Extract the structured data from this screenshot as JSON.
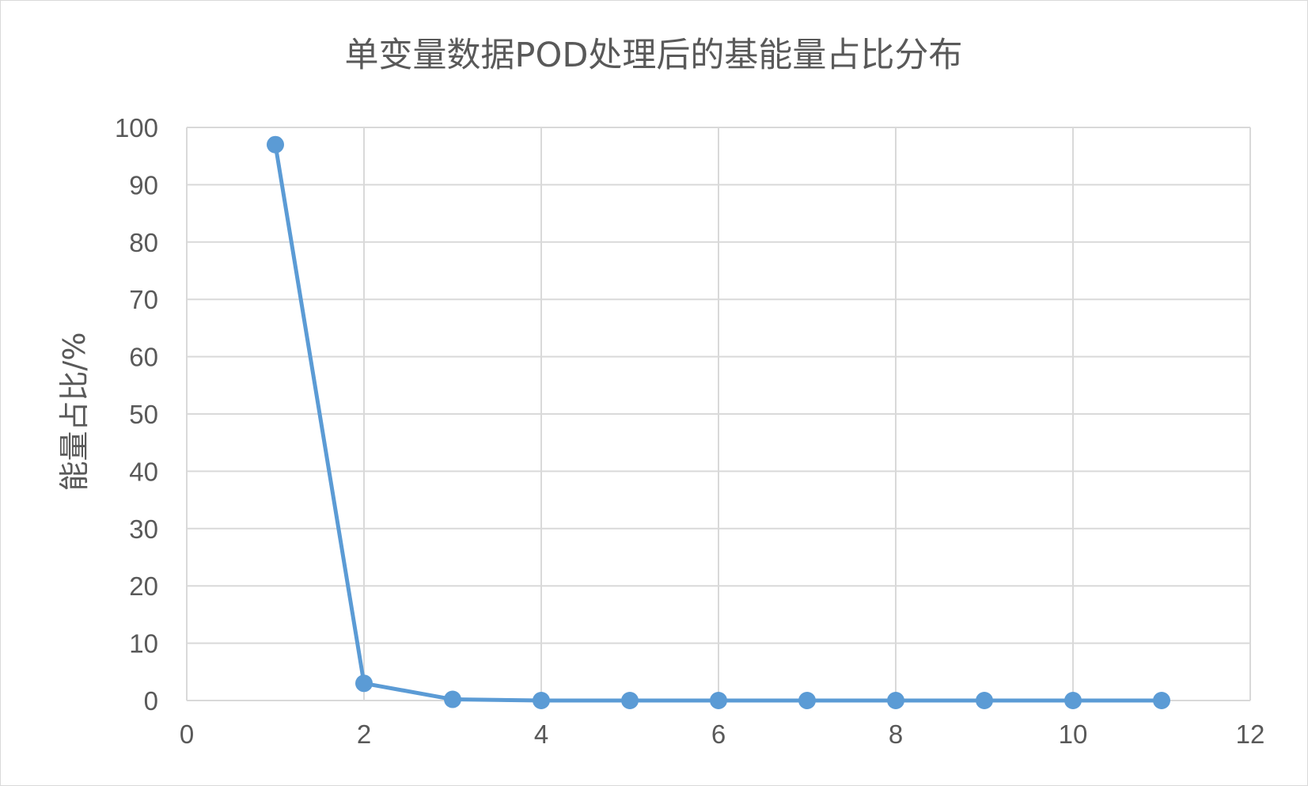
{
  "chart_data": {
    "type": "scatter",
    "title": "单变量数据POD处理后的基能量占比分布",
    "xlabel": "",
    "ylabel": "能量占比/%",
    "xlim": [
      0,
      12
    ],
    "ylim": [
      0,
      100
    ],
    "x_ticks": [
      0,
      2,
      4,
      6,
      8,
      10,
      12
    ],
    "y_ticks": [
      0,
      10,
      20,
      30,
      40,
      50,
      60,
      70,
      80,
      90,
      100
    ],
    "grid": true,
    "legend": "none",
    "series": [
      {
        "x": [
          1,
          2,
          3,
          4,
          5,
          6,
          7,
          8,
          9,
          10,
          11
        ],
        "y": [
          97,
          3,
          0.2,
          0,
          0,
          0,
          0,
          0,
          0,
          0,
          0
        ],
        "color": "#5b9bd5",
        "lines": true,
        "markers": true
      }
    ]
  }
}
